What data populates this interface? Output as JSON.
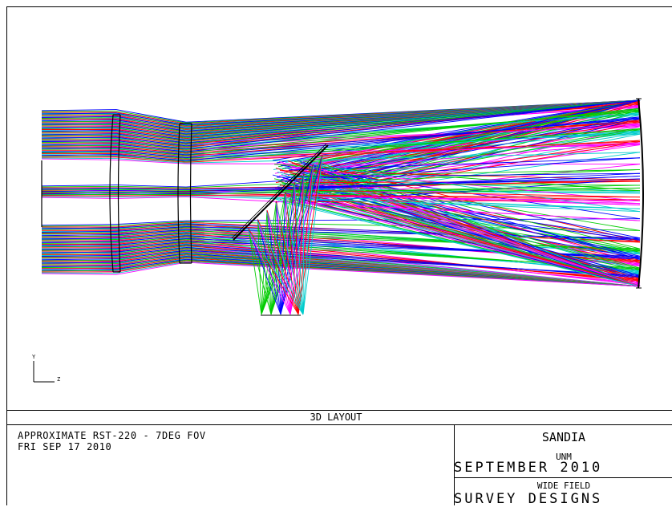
{
  "layout_title": "3D LAYOUT",
  "description": {
    "line1": "APPROXIMATE RST-220 - 7DEG FOV",
    "line2": "FRI SEP 17 2010"
  },
  "organization": {
    "name": "SANDIA",
    "sub": "UNM",
    "date": "SEPTEMBER 2010"
  },
  "project": {
    "line1": "WIDE FIELD",
    "line2": "SURVEY DESIGNS"
  },
  "axes": {
    "y": "Y",
    "z": "Z"
  },
  "ray_colors": [
    "#0000ff",
    "#00cc00",
    "#ff0000",
    "#00cccc",
    "#ff00ff"
  ]
}
